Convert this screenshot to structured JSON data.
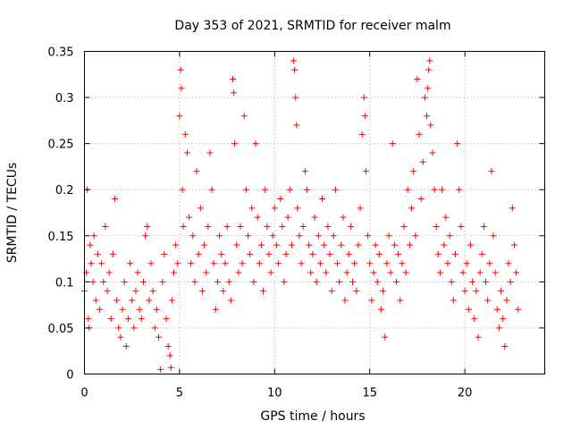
{
  "chart_data": {
    "type": "scatter",
    "title": "Day 353 of 2021, SRMTID for receiver malm",
    "xlabel": "GPS time / hours",
    "ylabel": "SRMTID / TECUs",
    "xlim": [
      0,
      24.2
    ],
    "ylim": [
      0,
      0.35
    ],
    "xticks": [
      0,
      5,
      10,
      15,
      20
    ],
    "xtick_labels": [
      "0",
      "5",
      "10",
      "15",
      "20"
    ],
    "yticks": [
      0,
      0.05,
      0.1,
      0.15,
      0.2,
      0.25,
      0.3,
      0.35
    ],
    "ytick_labels": [
      "0",
      "0.05",
      "0.1",
      "0.15",
      "0.2",
      "0.25",
      "0.3",
      "0.35"
    ],
    "grid": true,
    "marker": "plus",
    "color": "#ff0000",
    "series": [
      {
        "name": "SRMTID",
        "points": [
          [
            0.0,
            0.09
          ],
          [
            0.1,
            0.11
          ],
          [
            0.15,
            0.2
          ],
          [
            0.2,
            0.06
          ],
          [
            0.25,
            0.05
          ],
          [
            0.3,
            0.14
          ],
          [
            0.35,
            0.12
          ],
          [
            0.45,
            0.1
          ],
          [
            0.5,
            0.15
          ],
          [
            0.6,
            0.08
          ],
          [
            0.7,
            0.13
          ],
          [
            0.8,
            0.07
          ],
          [
            0.9,
            0.12
          ],
          [
            1.0,
            0.1
          ],
          [
            1.1,
            0.16
          ],
          [
            1.2,
            0.09
          ],
          [
            1.3,
            0.11
          ],
          [
            1.4,
            0.06
          ],
          [
            1.5,
            0.13
          ],
          [
            1.6,
            0.19
          ],
          [
            1.7,
            0.08
          ],
          [
            1.8,
            0.05
          ],
          [
            1.9,
            0.04
          ],
          [
            2.0,
            0.07
          ],
          [
            2.1,
            0.1
          ],
          [
            2.2,
            0.03
          ],
          [
            2.3,
            0.06
          ],
          [
            2.4,
            0.12
          ],
          [
            2.5,
            0.08
          ],
          [
            2.6,
            0.05
          ],
          [
            2.7,
            0.09
          ],
          [
            2.8,
            0.11
          ],
          [
            2.9,
            0.07
          ],
          [
            3.0,
            0.06
          ],
          [
            3.1,
            0.1
          ],
          [
            3.2,
            0.15
          ],
          [
            3.3,
            0.16
          ],
          [
            3.4,
            0.08
          ],
          [
            3.5,
            0.12
          ],
          [
            3.6,
            0.09
          ],
          [
            3.7,
            0.05
          ],
          [
            3.8,
            0.07
          ],
          [
            3.9,
            0.04
          ],
          [
            4.0,
            0.005
          ],
          [
            4.1,
            0.1
          ],
          [
            4.2,
            0.13
          ],
          [
            4.3,
            0.06
          ],
          [
            4.4,
            0.03
          ],
          [
            4.5,
            0.02
          ],
          [
            4.55,
            0.007
          ],
          [
            4.6,
            0.08
          ],
          [
            4.7,
            0.11
          ],
          [
            4.8,
            0.14
          ],
          [
            4.9,
            0.12
          ],
          [
            5.0,
            0.28
          ],
          [
            5.05,
            0.33
          ],
          [
            5.1,
            0.31
          ],
          [
            5.15,
            0.2
          ],
          [
            5.2,
            0.16
          ],
          [
            5.3,
            0.26
          ],
          [
            5.4,
            0.24
          ],
          [
            5.5,
            0.17
          ],
          [
            5.6,
            0.12
          ],
          [
            5.7,
            0.15
          ],
          [
            5.8,
            0.1
          ],
          [
            5.9,
            0.22
          ],
          [
            6.0,
            0.13
          ],
          [
            6.1,
            0.18
          ],
          [
            6.2,
            0.09
          ],
          [
            6.3,
            0.14
          ],
          [
            6.4,
            0.11
          ],
          [
            6.5,
            0.16
          ],
          [
            6.6,
            0.24
          ],
          [
            6.7,
            0.2
          ],
          [
            6.8,
            0.12
          ],
          [
            6.9,
            0.07
          ],
          [
            7.0,
            0.1
          ],
          [
            7.1,
            0.15
          ],
          [
            7.2,
            0.13
          ],
          [
            7.3,
            0.09
          ],
          [
            7.4,
            0.12
          ],
          [
            7.5,
            0.16
          ],
          [
            7.6,
            0.1
          ],
          [
            7.7,
            0.08
          ],
          [
            7.8,
            0.32
          ],
          [
            7.85,
            0.305
          ],
          [
            7.9,
            0.25
          ],
          [
            8.0,
            0.14
          ],
          [
            8.1,
            0.11
          ],
          [
            8.2,
            0.16
          ],
          [
            8.3,
            0.12
          ],
          [
            8.4,
            0.28
          ],
          [
            8.5,
            0.2
          ],
          [
            8.6,
            0.15
          ],
          [
            8.7,
            0.13
          ],
          [
            8.8,
            0.18
          ],
          [
            8.9,
            0.1
          ],
          [
            9.0,
            0.25
          ],
          [
            9.1,
            0.17
          ],
          [
            9.2,
            0.12
          ],
          [
            9.3,
            0.14
          ],
          [
            9.4,
            0.09
          ],
          [
            9.5,
            0.2
          ],
          [
            9.6,
            0.16
          ],
          [
            9.7,
            0.13
          ],
          [
            9.8,
            0.11
          ],
          [
            9.9,
            0.15
          ],
          [
            10.0,
            0.18
          ],
          [
            10.1,
            0.14
          ],
          [
            10.2,
            0.12
          ],
          [
            10.3,
            0.19
          ],
          [
            10.4,
            0.16
          ],
          [
            10.5,
            0.1
          ],
          [
            10.6,
            0.13
          ],
          [
            10.7,
            0.17
          ],
          [
            10.8,
            0.2
          ],
          [
            10.9,
            0.14
          ],
          [
            11.0,
            0.34
          ],
          [
            11.05,
            0.33
          ],
          [
            11.1,
            0.3
          ],
          [
            11.15,
            0.27
          ],
          [
            11.2,
            0.18
          ],
          [
            11.3,
            0.15
          ],
          [
            11.4,
            0.12
          ],
          [
            11.5,
            0.16
          ],
          [
            11.6,
            0.22
          ],
          [
            11.7,
            0.2
          ],
          [
            11.8,
            0.14
          ],
          [
            11.9,
            0.11
          ],
          [
            12.0,
            0.13
          ],
          [
            12.1,
            0.17
          ],
          [
            12.2,
            0.1
          ],
          [
            12.3,
            0.15
          ],
          [
            12.4,
            0.12
          ],
          [
            12.5,
            0.19
          ],
          [
            12.6,
            0.14
          ],
          [
            12.7,
            0.11
          ],
          [
            12.8,
            0.16
          ],
          [
            12.9,
            0.13
          ],
          [
            13.0,
            0.09
          ],
          [
            13.1,
            0.15
          ],
          [
            13.2,
            0.2
          ],
          [
            13.3,
            0.12
          ],
          [
            13.4,
            0.1
          ],
          [
            13.5,
            0.14
          ],
          [
            13.6,
            0.17
          ],
          [
            13.7,
            0.08
          ],
          [
            13.8,
            0.11
          ],
          [
            13.9,
            0.13
          ],
          [
            14.0,
            0.16
          ],
          [
            14.1,
            0.1
          ],
          [
            14.2,
            0.12
          ],
          [
            14.3,
            0.09
          ],
          [
            14.4,
            0.14
          ],
          [
            14.5,
            0.18
          ],
          [
            14.6,
            0.26
          ],
          [
            14.7,
            0.3
          ],
          [
            14.75,
            0.28
          ],
          [
            14.8,
            0.22
          ],
          [
            14.9,
            0.15
          ],
          [
            15.0,
            0.12
          ],
          [
            15.1,
            0.08
          ],
          [
            15.2,
            0.11
          ],
          [
            15.3,
            0.14
          ],
          [
            15.4,
            0.1
          ],
          [
            15.5,
            0.13
          ],
          [
            15.6,
            0.07
          ],
          [
            15.7,
            0.09
          ],
          [
            15.8,
            0.04
          ],
          [
            15.9,
            0.12
          ],
          [
            16.0,
            0.15
          ],
          [
            16.1,
            0.11
          ],
          [
            16.2,
            0.25
          ],
          [
            16.3,
            0.14
          ],
          [
            16.4,
            0.1
          ],
          [
            16.5,
            0.13
          ],
          [
            16.6,
            0.08
          ],
          [
            16.7,
            0.12
          ],
          [
            16.8,
            0.16
          ],
          [
            16.9,
            0.11
          ],
          [
            17.0,
            0.2
          ],
          [
            17.1,
            0.14
          ],
          [
            17.2,
            0.18
          ],
          [
            17.3,
            0.22
          ],
          [
            17.4,
            0.15
          ],
          [
            17.5,
            0.32
          ],
          [
            17.6,
            0.26
          ],
          [
            17.7,
            0.19
          ],
          [
            17.8,
            0.23
          ],
          [
            17.9,
            0.3
          ],
          [
            18.0,
            0.28
          ],
          [
            18.05,
            0.31
          ],
          [
            18.1,
            0.33
          ],
          [
            18.15,
            0.34
          ],
          [
            18.2,
            0.27
          ],
          [
            18.3,
            0.24
          ],
          [
            18.4,
            0.2
          ],
          [
            18.5,
            0.16
          ],
          [
            18.6,
            0.13
          ],
          [
            18.7,
            0.11
          ],
          [
            18.8,
            0.2
          ],
          [
            18.9,
            0.14
          ],
          [
            19.0,
            0.17
          ],
          [
            19.1,
            0.12
          ],
          [
            19.2,
            0.15
          ],
          [
            19.3,
            0.1
          ],
          [
            19.4,
            0.08
          ],
          [
            19.5,
            0.13
          ],
          [
            19.6,
            0.25
          ],
          [
            19.7,
            0.2
          ],
          [
            19.8,
            0.16
          ],
          [
            19.9,
            0.11
          ],
          [
            20.0,
            0.09
          ],
          [
            20.1,
            0.12
          ],
          [
            20.2,
            0.07
          ],
          [
            20.3,
            0.14
          ],
          [
            20.4,
            0.1
          ],
          [
            20.5,
            0.06
          ],
          [
            20.6,
            0.09
          ],
          [
            20.7,
            0.04
          ],
          [
            20.8,
            0.11
          ],
          [
            20.9,
            0.13
          ],
          [
            21.0,
            0.16
          ],
          [
            21.1,
            0.1
          ],
          [
            21.2,
            0.08
          ],
          [
            21.3,
            0.12
          ],
          [
            21.4,
            0.22
          ],
          [
            21.5,
            0.15
          ],
          [
            21.6,
            0.11
          ],
          [
            21.7,
            0.07
          ],
          [
            21.8,
            0.05
          ],
          [
            21.9,
            0.09
          ],
          [
            22.0,
            0.06
          ],
          [
            22.1,
            0.03
          ],
          [
            22.2,
            0.08
          ],
          [
            22.3,
            0.12
          ],
          [
            22.4,
            0.1
          ],
          [
            22.5,
            0.18
          ],
          [
            22.6,
            0.14
          ],
          [
            22.7,
            0.11
          ],
          [
            22.8,
            0.07
          ]
        ]
      }
    ]
  }
}
